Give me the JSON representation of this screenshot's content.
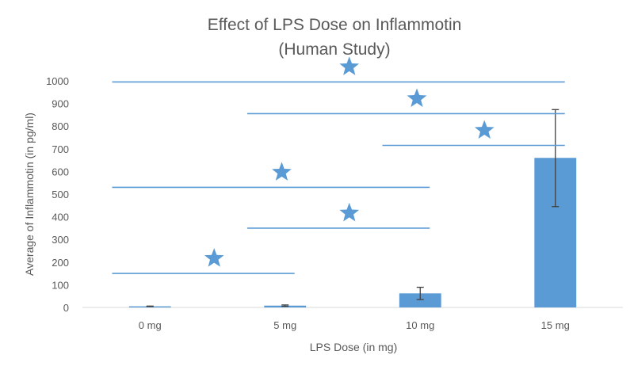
{
  "chart_data": {
    "type": "bar",
    "title": "Effect of LPS Dose on Inflammotin",
    "subtitle": "(Human Study)",
    "xlabel": "LPS Dose (in mg)",
    "ylabel": "Average of Inflammotin (in pg/ml)",
    "categories": [
      "0 mg",
      "5 mg",
      "10 mg",
      "15 mg"
    ],
    "values": [
      5,
      8,
      62,
      660
    ],
    "error_low": [
      4,
      5,
      35,
      445
    ],
    "error_high": [
      6,
      11,
      89,
      873
    ],
    "ylim": [
      0,
      1000
    ],
    "yticks": [
      0,
      100,
      200,
      300,
      400,
      500,
      600,
      700,
      800,
      900,
      1000
    ],
    "grid": false,
    "legend": "none",
    "bar_color": "#5B9BD5",
    "error_bar_color": "#404040",
    "significance": [
      {
        "from": "0 mg",
        "to": "5 mg",
        "y": 150,
        "symbol": "★"
      },
      {
        "from": "5 mg",
        "to": "10 mg",
        "y": 350,
        "symbol": "★"
      },
      {
        "from": "0 mg",
        "to": "10 mg",
        "y": 530,
        "symbol": "★"
      },
      {
        "from": "10 mg",
        "to": "15 mg",
        "y": 715,
        "symbol": "★"
      },
      {
        "from": "5 mg",
        "to": "15 mg",
        "y": 855,
        "symbol": "★"
      },
      {
        "from": "0 mg",
        "to": "15 mg",
        "y": 995,
        "symbol": "★"
      }
    ]
  }
}
